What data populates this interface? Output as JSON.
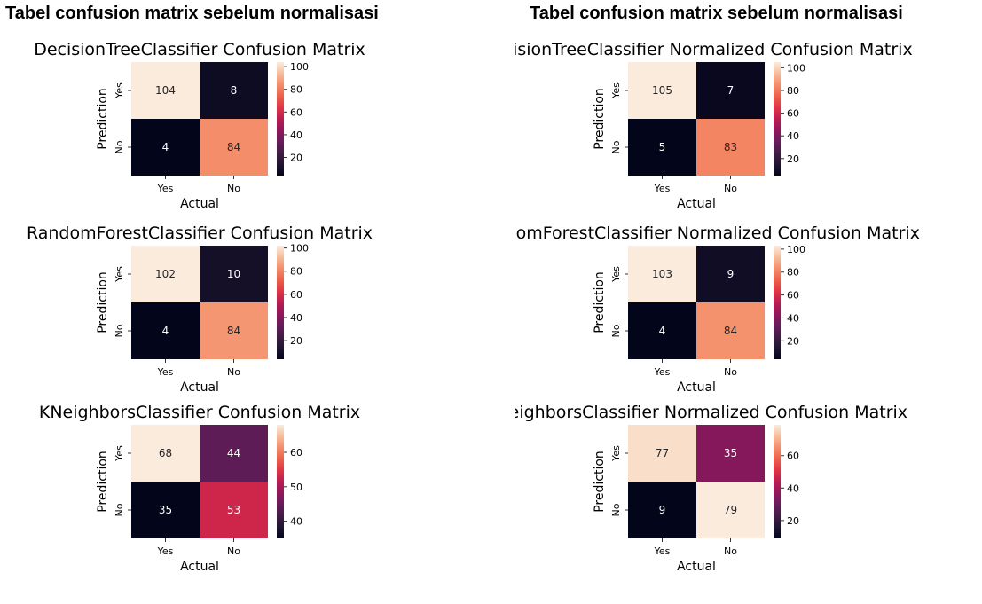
{
  "headings": {
    "left": "Tabel confusion matrix sebelum normalisasi",
    "right": "Tabel confusion matrix sebelum normalisasi"
  },
  "chart_data": [
    {
      "type": "heatmap",
      "title": "DecisionTreeClassifier Confusion Matrix",
      "xlabel": "Actual",
      "ylabel": "Prediction",
      "x_categories": [
        "Yes",
        "No"
      ],
      "y_categories": [
        "Yes",
        "No"
      ],
      "values": [
        [
          104,
          8
        ],
        [
          4,
          84
        ]
      ],
      "colorbar": {
        "min": 4,
        "max": 104,
        "ticks": [
          20,
          40,
          60,
          80,
          100
        ]
      },
      "colormap": "rocket"
    },
    {
      "type": "heatmap",
      "title": "DecisionTreeClassifier Normalized Confusion Matrix",
      "xlabel": "Actual",
      "ylabel": "Prediction",
      "x_categories": [
        "Yes",
        "No"
      ],
      "y_categories": [
        "Yes",
        "No"
      ],
      "values": [
        [
          105,
          7
        ],
        [
          5,
          83
        ]
      ],
      "colorbar": {
        "min": 5,
        "max": 105,
        "ticks": [
          20,
          40,
          60,
          80,
          100
        ]
      },
      "colormap": "rocket"
    },
    {
      "type": "heatmap",
      "title": "RandomForestClassifier Confusion Matrix",
      "xlabel": "Actual",
      "ylabel": "Prediction",
      "x_categories": [
        "Yes",
        "No"
      ],
      "y_categories": [
        "Yes",
        "No"
      ],
      "values": [
        [
          102,
          10
        ],
        [
          4,
          84
        ]
      ],
      "colorbar": {
        "min": 4,
        "max": 102,
        "ticks": [
          20,
          40,
          60,
          80,
          100
        ]
      },
      "colormap": "rocket"
    },
    {
      "type": "heatmap",
      "title": "RandomForestClassifier Normalized Confusion Matrix",
      "xlabel": "Actual",
      "ylabel": "Prediction",
      "x_categories": [
        "Yes",
        "No"
      ],
      "y_categories": [
        "Yes",
        "No"
      ],
      "values": [
        [
          103,
          9
        ],
        [
          4,
          84
        ]
      ],
      "colorbar": {
        "min": 4,
        "max": 103,
        "ticks": [
          20,
          40,
          60,
          80,
          100
        ]
      },
      "colormap": "rocket"
    },
    {
      "type": "heatmap",
      "title": "KNeighborsClassifier Confusion Matrix",
      "xlabel": "Actual",
      "ylabel": "Prediction",
      "x_categories": [
        "Yes",
        "No"
      ],
      "y_categories": [
        "Yes",
        "No"
      ],
      "values": [
        [
          68,
          44
        ],
        [
          35,
          53
        ]
      ],
      "colorbar": {
        "min": 35,
        "max": 68,
        "ticks": [
          40,
          50,
          60
        ]
      },
      "colormap": "rocket"
    },
    {
      "type": "heatmap",
      "title": "KNeighborsClassifier Normalized Confusion Matrix",
      "xlabel": "Actual",
      "ylabel": "Prediction",
      "x_categories": [
        "Yes",
        "No"
      ],
      "y_categories": [
        "Yes",
        "No"
      ],
      "values": [
        [
          77,
          35
        ],
        [
          9,
          79
        ]
      ],
      "colorbar": {
        "min": 9,
        "max": 79,
        "ticks": [
          20,
          40,
          60
        ]
      },
      "colormap": "rocket"
    }
  ]
}
